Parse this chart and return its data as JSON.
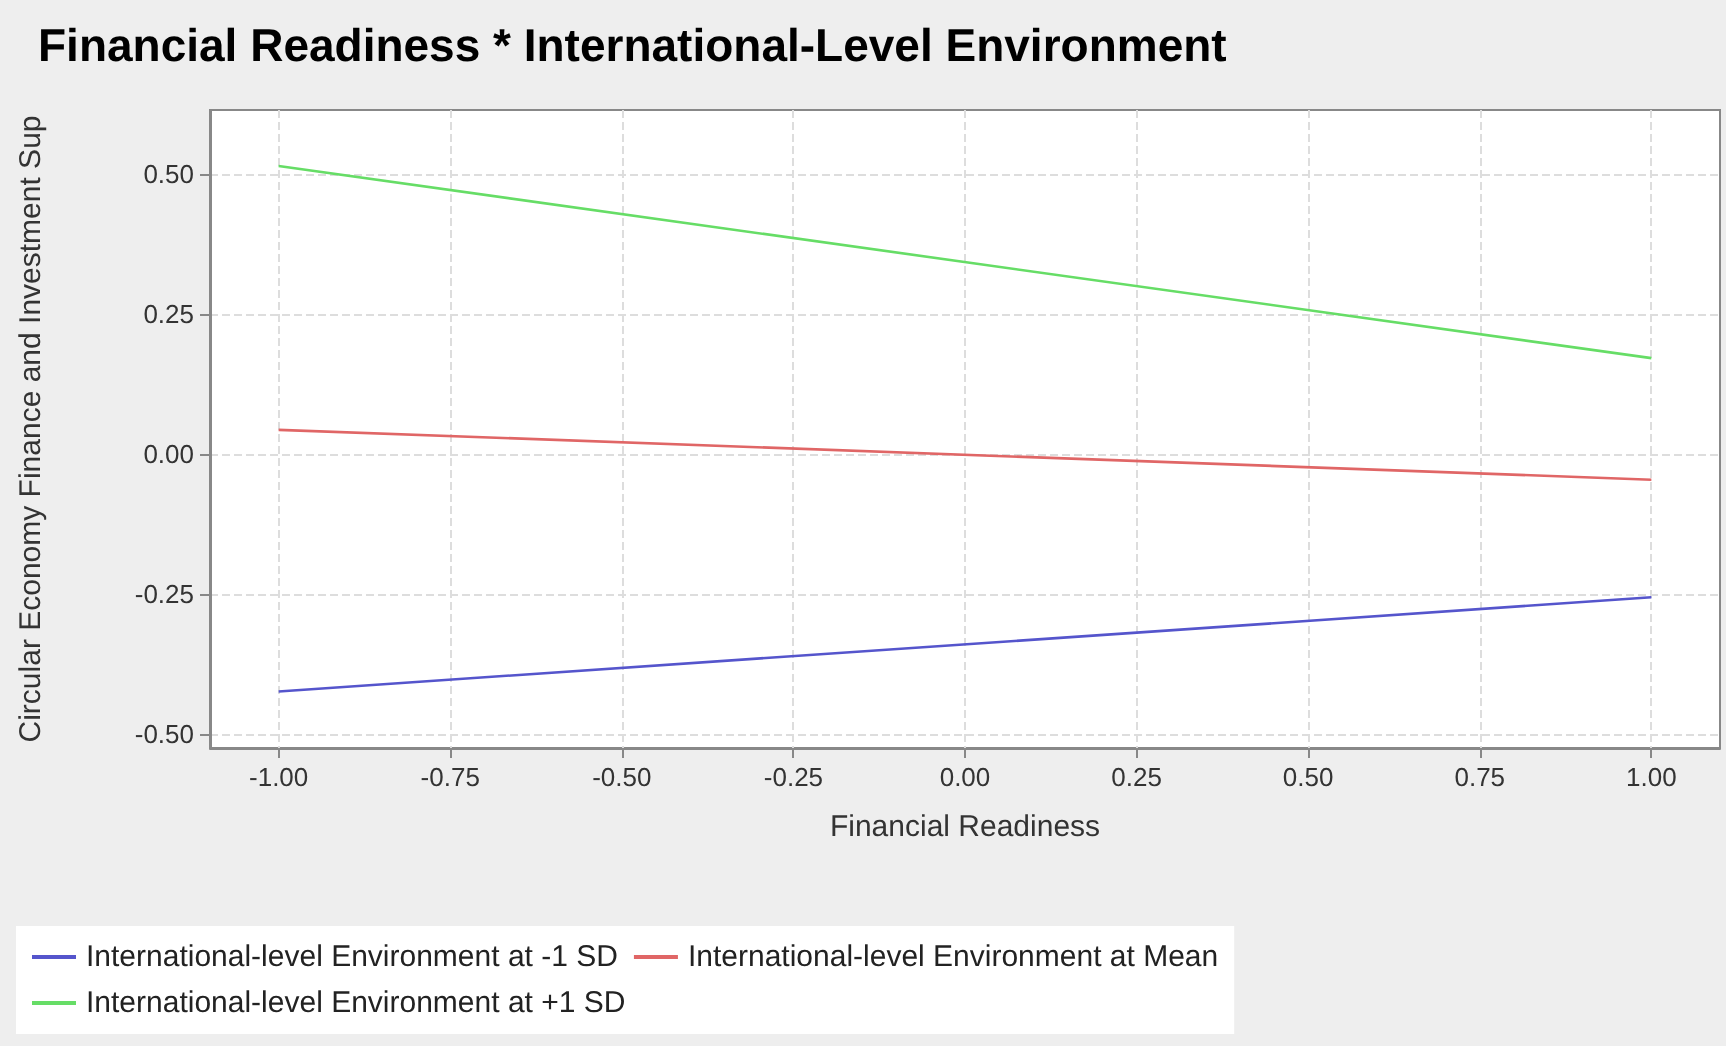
{
  "chart_data": {
    "type": "line",
    "title": "Financial Readiness * International-Level Environment",
    "xlabel": "Financial Readiness",
    "ylabel": "Circular Economy Finance and Investment Sup",
    "x": [
      -1,
      1
    ],
    "series": [
      {
        "name": "International-level Environment at -1 SD",
        "color": "#5555cc",
        "values": [
          -0.424,
          -0.256
        ]
      },
      {
        "name": "International-level Environment at Mean",
        "color": "#e06666",
        "values": [
          0.043,
          -0.046
        ]
      },
      {
        "name": "International-level Environment at +1 SD",
        "color": "#66dd66",
        "values": [
          0.514,
          0.171
        ]
      }
    ],
    "xlim": [
      -1.1,
      1.1
    ],
    "xticks": [
      {
        "value": -1,
        "label": "-1.00"
      },
      {
        "value": -0.75,
        "label": "-0.75"
      },
      {
        "value": -0.5,
        "label": "-0.50"
      },
      {
        "value": -0.25,
        "label": "-0.25"
      },
      {
        "value": 0,
        "label": "0.00"
      },
      {
        "value": 0.25,
        "label": "0.25"
      },
      {
        "value": 0.5,
        "label": "0.50"
      },
      {
        "value": 0.75,
        "label": "0.75"
      },
      {
        "value": 1,
        "label": "1.00"
      }
    ],
    "ylim": [
      -0.525,
      0.614
    ],
    "yticks": [
      {
        "value": -0.5,
        "label": "-0.50"
      },
      {
        "value": -0.25,
        "label": "-0.25"
      },
      {
        "value": 0,
        "label": "0.00"
      },
      {
        "value": 0.25,
        "label": "0.25"
      },
      {
        "value": 0.5,
        "label": "0.50"
      }
    ],
    "grid": true,
    "legend": "bottom",
    "marker": "none",
    "line_style": "solid"
  }
}
